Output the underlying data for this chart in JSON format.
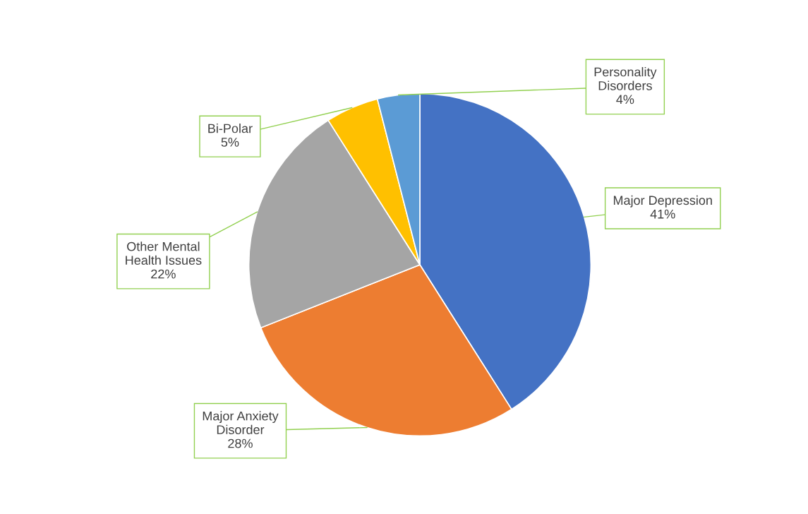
{
  "chart_data": {
    "type": "pie",
    "categories": [
      "Major Depression",
      "Major Anxiety Disorder",
      "Other Mental Health Issues",
      "Bi-Polar",
      "Personality Disorders"
    ],
    "values": [
      41,
      28,
      22,
      5,
      4
    ],
    "colors": [
      "#4472c4",
      "#ed7d31",
      "#a5a5a5",
      "#ffc000",
      "#5b9bd5"
    ],
    "value_labels": [
      "41%",
      "28%",
      "22%",
      "5%",
      "4%"
    ],
    "legend": false
  }
}
